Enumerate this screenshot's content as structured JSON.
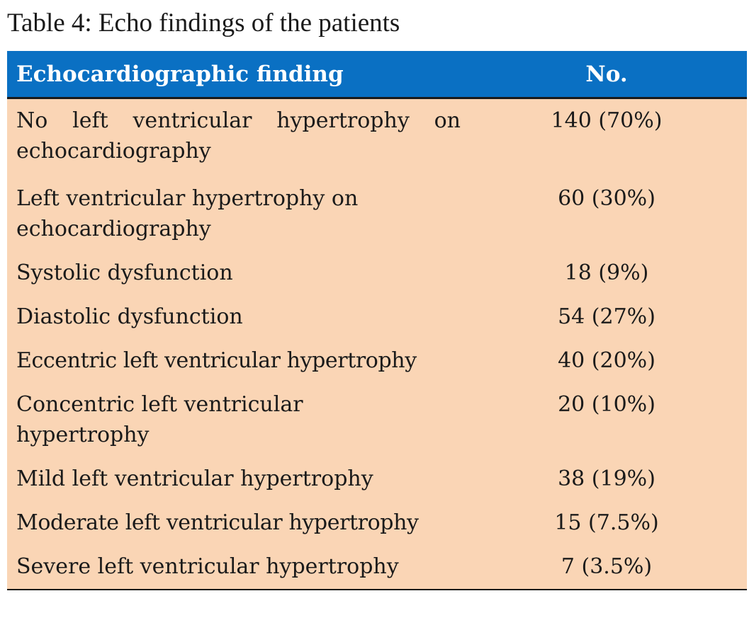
{
  "caption": "Table 4: Echo findings of the patients",
  "columns": [
    "Echocardiographic finding",
    "No."
  ],
  "rows": [
    {
      "finding": "No left ventricular hypertrophy on echocardiography",
      "no": "140 (70%)"
    },
    {
      "finding": "Left ventricular hypertrophy on echocardiography",
      "no": "60 (30%)"
    },
    {
      "finding": "Systolic dysfunction",
      "no": "18 (9%)"
    },
    {
      "finding": "Diastolic dysfunction",
      "no": "54 (27%)"
    },
    {
      "finding": "Eccentric left ventricular hypertrophy",
      "no": "40 (20%)"
    },
    {
      "finding": "Concentric left ventricular hypertrophy",
      "no": "20 (10%)"
    },
    {
      "finding": "Mild left ventricular hypertrophy",
      "no": "38 (19%)"
    },
    {
      "finding": "Moderate left ventricular hypertrophy",
      "no": "15 (7.5%)"
    },
    {
      "finding": "Severe left ventricular hypertrophy",
      "no": "7 (3.5%)"
    }
  ],
  "colors": {
    "header_bg": "#0a70c3",
    "header_text": "#ffffff",
    "body_bg": "#fad5b5"
  }
}
